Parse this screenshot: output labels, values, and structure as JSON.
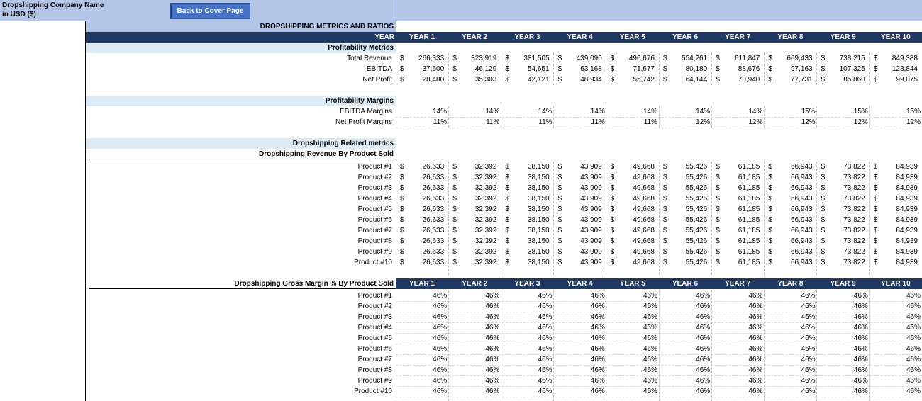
{
  "header": {
    "company_name": "Dropshipping Company Name",
    "currency": "in USD ($)",
    "back_button": "Back to Cover Page"
  },
  "table_title": "DROPSHIPPING METRICS AND RATIOS",
  "year_label": "YEAR",
  "years": [
    "YEAR 1",
    "YEAR 2",
    "YEAR 3",
    "YEAR 4",
    "YEAR 5",
    "YEAR 6",
    "YEAR 7",
    "YEAR 8",
    "YEAR 9",
    "YEAR 10"
  ],
  "currency_symbol": "$",
  "profitability_metrics": {
    "title": "Profitability Metrics",
    "rows": [
      {
        "label": "Total Revenue",
        "values": [
          "266,333",
          "323,919",
          "381,505",
          "439,090",
          "496,676",
          "554,261",
          "611,847",
          "669,433",
          "738,215",
          "849,388"
        ]
      },
      {
        "label": "EBITDA",
        "values": [
          "37,600",
          "46,129",
          "54,651",
          "63,168",
          "71,677",
          "80,180",
          "88,676",
          "97,163",
          "107,325",
          "123,844"
        ]
      },
      {
        "label": "Net Profit",
        "values": [
          "28,480",
          "35,303",
          "42,121",
          "48,934",
          "55,742",
          "64,144",
          "70,940",
          "77,731",
          "85,860",
          "99,075"
        ]
      }
    ]
  },
  "profitability_margins": {
    "title": "Profitability Margins",
    "rows": [
      {
        "label": "EBITDA Margins",
        "values": [
          "14%",
          "14%",
          "14%",
          "14%",
          "14%",
          "14%",
          "14%",
          "15%",
          "15%",
          "15%"
        ]
      },
      {
        "label": "Net Profit Margins",
        "values": [
          "11%",
          "11%",
          "11%",
          "11%",
          "11%",
          "12%",
          "12%",
          "12%",
          "12%",
          "12%"
        ]
      }
    ]
  },
  "dropshipping_related": {
    "title": "Dropshipping Related metrics",
    "revenue_subtitle": "Dropshipping Revenue By Product Sold",
    "revenue_rows": [
      {
        "label": "Product #1",
        "values": [
          "26,633",
          "32,392",
          "38,150",
          "43,909",
          "49,668",
          "55,426",
          "61,185",
          "66,943",
          "73,822",
          "84,939"
        ]
      },
      {
        "label": "Product #2",
        "values": [
          "26,633",
          "32,392",
          "38,150",
          "43,909",
          "49,668",
          "55,426",
          "61,185",
          "66,943",
          "73,822",
          "84,939"
        ]
      },
      {
        "label": "Product #3",
        "values": [
          "26,633",
          "32,392",
          "38,150",
          "43,909",
          "49,668",
          "55,426",
          "61,185",
          "66,943",
          "73,822",
          "84,939"
        ]
      },
      {
        "label": "Product #4",
        "values": [
          "26,633",
          "32,392",
          "38,150",
          "43,909",
          "49,668",
          "55,426",
          "61,185",
          "66,943",
          "73,822",
          "84,939"
        ]
      },
      {
        "label": "Product #5",
        "values": [
          "26,633",
          "32,392",
          "38,150",
          "43,909",
          "49,668",
          "55,426",
          "61,185",
          "66,943",
          "73,822",
          "84,939"
        ]
      },
      {
        "label": "Product #6",
        "values": [
          "26,633",
          "32,392",
          "38,150",
          "43,909",
          "49,668",
          "55,426",
          "61,185",
          "66,943",
          "73,822",
          "84,939"
        ]
      },
      {
        "label": "Product #7",
        "values": [
          "26,633",
          "32,392",
          "38,150",
          "43,909",
          "49,668",
          "55,426",
          "61,185",
          "66,943",
          "73,822",
          "84,939"
        ]
      },
      {
        "label": "Product #8",
        "values": [
          "26,633",
          "32,392",
          "38,150",
          "43,909",
          "49,668",
          "55,426",
          "61,185",
          "66,943",
          "73,822",
          "84,939"
        ]
      },
      {
        "label": "Product #9",
        "values": [
          "26,633",
          "32,392",
          "38,150",
          "43,909",
          "49,668",
          "55,426",
          "61,185",
          "66,943",
          "73,822",
          "84,939"
        ]
      },
      {
        "label": "Product #10",
        "values": [
          "26,633",
          "32,392",
          "38,150",
          "43,909",
          "49,668",
          "55,426",
          "61,185",
          "66,943",
          "73,822",
          "84,939"
        ]
      }
    ],
    "margin_subtitle": "Dropshipping Gross Margin % By Product Sold",
    "margin_rows": [
      {
        "label": "Product #1",
        "values": [
          "46%",
          "46%",
          "46%",
          "46%",
          "46%",
          "46%",
          "46%",
          "46%",
          "46%",
          "46%"
        ]
      },
      {
        "label": "Product #2",
        "values": [
          "46%",
          "46%",
          "46%",
          "46%",
          "46%",
          "46%",
          "46%",
          "46%",
          "46%",
          "46%"
        ]
      },
      {
        "label": "Product #3",
        "values": [
          "46%",
          "46%",
          "46%",
          "46%",
          "46%",
          "46%",
          "46%",
          "46%",
          "46%",
          "46%"
        ]
      },
      {
        "label": "Product #4",
        "values": [
          "46%",
          "46%",
          "46%",
          "46%",
          "46%",
          "46%",
          "46%",
          "46%",
          "46%",
          "46%"
        ]
      },
      {
        "label": "Product #5",
        "values": [
          "46%",
          "46%",
          "46%",
          "46%",
          "46%",
          "46%",
          "46%",
          "46%",
          "46%",
          "46%"
        ]
      },
      {
        "label": "Product #6",
        "values": [
          "46%",
          "46%",
          "46%",
          "46%",
          "46%",
          "46%",
          "46%",
          "46%",
          "46%",
          "46%"
        ]
      },
      {
        "label": "Product #7",
        "values": [
          "46%",
          "46%",
          "46%",
          "46%",
          "46%",
          "46%",
          "46%",
          "46%",
          "46%",
          "46%"
        ]
      },
      {
        "label": "Product #8",
        "values": [
          "46%",
          "46%",
          "46%",
          "46%",
          "46%",
          "46%",
          "46%",
          "46%",
          "46%",
          "46%"
        ]
      },
      {
        "label": "Product #9",
        "values": [
          "46%",
          "46%",
          "46%",
          "46%",
          "46%",
          "46%",
          "46%",
          "46%",
          "46%",
          "46%"
        ]
      },
      {
        "label": "Product #10",
        "values": [
          "46%",
          "46%",
          "46%",
          "46%",
          "46%",
          "46%",
          "46%",
          "46%",
          "46%",
          "46%"
        ]
      }
    ]
  },
  "colors": {
    "header_fill": "#b4c6e7",
    "year_header_fill": "#1f3864",
    "section_fill": "#ddebf7",
    "button_fill": "#4472c4"
  }
}
